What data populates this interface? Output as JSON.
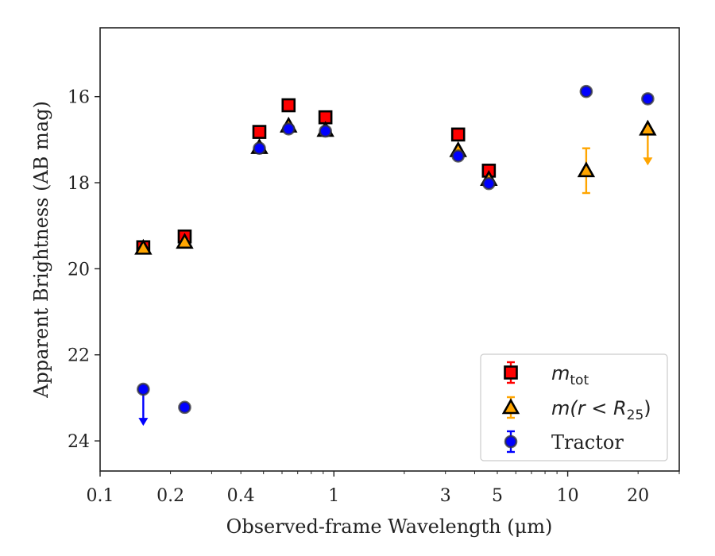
{
  "chart_data": {
    "type": "scatter",
    "xscale": "log",
    "yaxis_inverted": true,
    "xlim": [
      0.1,
      30
    ],
    "ylim": [
      24.7,
      14.4
    ],
    "xlabel": "Observed-frame Wavelength (μm)",
    "ylabel": "Apparent Brightness (AB mag)",
    "x_ticks": [
      {
        "value": 0.1,
        "label": "0.1"
      },
      {
        "value": 0.2,
        "label": "0.2"
      },
      {
        "value": 0.4,
        "label": "0.4"
      },
      {
        "value": 1,
        "label": "1"
      },
      {
        "value": 3,
        "label": "3"
      },
      {
        "value": 5,
        "label": "5"
      },
      {
        "value": 10,
        "label": "10"
      },
      {
        "value": 20,
        "label": "20"
      }
    ],
    "y_ticks": [
      {
        "value": 16,
        "label": "16"
      },
      {
        "value": 18,
        "label": "18"
      },
      {
        "value": 20,
        "label": "20"
      },
      {
        "value": 22,
        "label": "22"
      },
      {
        "value": 24,
        "label": "24"
      }
    ],
    "grid": false,
    "legend_position": "lower-right",
    "series": [
      {
        "name": "m_tot",
        "legend_main": "m",
        "legend_sub": "tot",
        "marker": "square",
        "color": "#ff0000",
        "edge_color": "#000000",
        "error_color": "#ff0000",
        "points": [
          {
            "x": 0.153,
            "y": 19.5,
            "err": 0.05
          },
          {
            "x": 0.23,
            "y": 19.25,
            "err": 0.05
          },
          {
            "x": 0.48,
            "y": 16.82,
            "err": 0.03
          },
          {
            "x": 0.64,
            "y": 16.2,
            "err": 0.03
          },
          {
            "x": 0.92,
            "y": 16.48,
            "err": 0.03
          },
          {
            "x": 3.4,
            "y": 16.88,
            "err": 0.03
          },
          {
            "x": 4.6,
            "y": 17.72,
            "err": 0.03
          }
        ]
      },
      {
        "name": "m(r < R25)",
        "legend_pre": "m(r < R",
        "legend_sub": "25",
        "legend_post": ")",
        "marker": "triangle",
        "color": "#ffa500",
        "edge_color": "#000000",
        "error_color": "#ffa500",
        "points": [
          {
            "x": 0.153,
            "y": 19.52,
            "err": 0.05
          },
          {
            "x": 0.23,
            "y": 19.38,
            "err": 0.05
          },
          {
            "x": 0.48,
            "y": 17.18,
            "err": 0.03
          },
          {
            "x": 0.64,
            "y": 16.68,
            "err": 0.03
          },
          {
            "x": 0.92,
            "y": 16.78,
            "err": 0.03
          },
          {
            "x": 3.4,
            "y": 17.25,
            "err": 0.03
          },
          {
            "x": 4.6,
            "y": 17.92,
            "err": 0.03
          },
          {
            "x": 12.0,
            "y": 17.72,
            "err": 0.52
          },
          {
            "x": 22.0,
            "y": 16.75,
            "upper_limit": true
          }
        ]
      },
      {
        "name": "Tractor",
        "marker": "circle",
        "color": "#0000ff",
        "edge_color": "#000000",
        "error_color": "#0000ff",
        "points": [
          {
            "x": 0.153,
            "y": 22.8,
            "upper_limit": true
          },
          {
            "x": 0.23,
            "y": 23.22,
            "err": 0.05
          },
          {
            "x": 0.48,
            "y": 17.2,
            "err": 0.03
          },
          {
            "x": 0.64,
            "y": 16.75,
            "err": 0.03
          },
          {
            "x": 0.92,
            "y": 16.8,
            "err": 0.03
          },
          {
            "x": 3.4,
            "y": 17.38,
            "err": 0.03
          },
          {
            "x": 4.6,
            "y": 18.02,
            "err": 0.03
          },
          {
            "x": 12.0,
            "y": 15.88,
            "err": 0.04
          },
          {
            "x": 22.0,
            "y": 16.05,
            "err": 0.05
          }
        ]
      }
    ]
  }
}
